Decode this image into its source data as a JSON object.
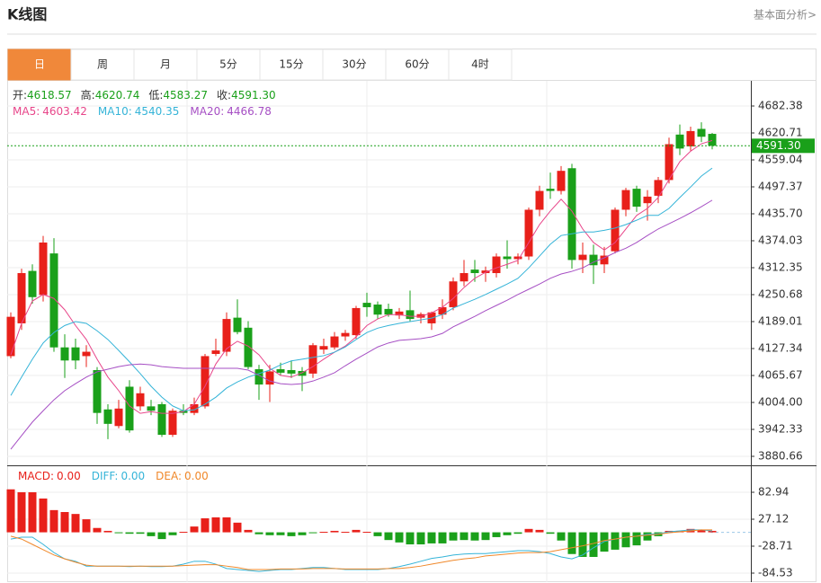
{
  "title": "K线图",
  "link": "基本面分析>",
  "tabs": [
    "日",
    "周",
    "月",
    "5分",
    "15分",
    "30分",
    "60分",
    "4时"
  ],
  "chart_data": [
    {
      "type": "candlestick",
      "up_color": "#e8201a",
      "down_color": "#1aa01a",
      "ylim": [
        3860.1,
        4739.94
      ],
      "yticks": [
        4682.38,
        4620.71,
        4559.04,
        4497.37,
        {
          "value": 4435.7,
          "label": "4435.70"
        },
        4374.03,
        4312.35,
        4250.68,
        4189.01,
        4127.34,
        4065.67,
        {
          "value": 4004,
          "label": "4004.00"
        },
        3942.33,
        3880.66
      ],
      "info": [
        {
          "label": "开:",
          "value_label": "4618.57"
        },
        {
          "label": "高:",
          "value_label": "4620.74"
        },
        {
          "label": "低:",
          "value_label": "4583.27"
        },
        {
          "label": "收:",
          "value_label": "4591.30"
        }
      ],
      "last_price_label": "4591.30",
      "candles": [
        [
          4110,
          4210,
          4105,
          4200
        ],
        [
          4185,
          4310,
          4170,
          4300
        ],
        [
          4305,
          4320,
          4230,
          4245
        ],
        [
          4250,
          4385,
          4235,
          4370
        ],
        [
          4345,
          4380,
          4120,
          4130
        ],
        [
          4130,
          4160,
          4060,
          4100
        ],
        [
          4130,
          4150,
          4080,
          4100
        ],
        [
          4110,
          4135,
          4085,
          4120
        ],
        [
          4078,
          4085,
          3955,
          3980
        ],
        [
          3988,
          4000,
          3920,
          3955
        ],
        [
          3950,
          4010,
          3945,
          3990
        ],
        [
          4040,
          4055,
          3935,
          3940
        ],
        [
          3995,
          4040,
          3985,
          4025
        ],
        [
          3995,
          4010,
          3975,
          3985
        ],
        [
          4000,
          4005,
          3925,
          3930
        ],
        [
          3930,
          3990,
          3925,
          3985
        ],
        [
          3985,
          4000,
          3975,
          3980
        ],
        [
          3980,
          4015,
          3975,
          4000
        ],
        [
          3995,
          4115,
          3990,
          4110
        ],
        [
          4115,
          4150,
          4110,
          4123
        ],
        [
          4120,
          4210,
          4110,
          4195
        ],
        [
          4198,
          4240,
          4160,
          4165
        ],
        [
          4175,
          4190,
          4080,
          4085
        ],
        [
          4080,
          4090,
          4010,
          4045
        ],
        [
          4045,
          4090,
          4005,
          4075
        ],
        [
          4080,
          4095,
          4065,
          4072
        ],
        [
          4078,
          4100,
          4060,
          4070
        ],
        [
          4076,
          4085,
          4030,
          4065
        ],
        [
          4070,
          4140,
          4060,
          4135
        ],
        [
          4125,
          4150,
          4115,
          4133
        ],
        [
          4130,
          4165,
          4125,
          4155
        ],
        [
          4155,
          4170,
          4145,
          4163
        ],
        [
          4158,
          4225,
          4150,
          4220
        ],
        [
          4232,
          4255,
          4200,
          4222
        ],
        [
          4228,
          4235,
          4195,
          4205
        ],
        [
          4218,
          4230,
          4200,
          4205
        ],
        [
          4203,
          4220,
          4195,
          4212
        ],
        [
          4215,
          4260,
          4190,
          4195
        ],
        [
          4198,
          4210,
          4185,
          4206
        ],
        [
          4185,
          4212,
          4170,
          4210
        ],
        [
          4205,
          4240,
          4195,
          4222
        ],
        [
          4222,
          4290,
          4215,
          4281
        ],
        [
          4281,
          4330,
          4270,
          4300
        ],
        [
          4308,
          4330,
          4280,
          4300
        ],
        [
          4300,
          4315,
          4280,
          4306
        ],
        [
          4300,
          4345,
          4290,
          4338
        ],
        [
          4338,
          4375,
          4310,
          4332
        ],
        [
          4332,
          4345,
          4320,
          4338
        ],
        [
          4338,
          4450,
          4330,
          4445
        ],
        [
          4445,
          4500,
          4430,
          4488
        ],
        [
          4493,
          4530,
          4470,
          4488
        ],
        [
          4488,
          4545,
          4480,
          4534
        ],
        [
          4540,
          4550,
          4310,
          4330
        ],
        [
          4330,
          4370,
          4300,
          4342
        ],
        [
          4342,
          4365,
          4275,
          4318
        ],
        [
          4320,
          4360,
          4300,
          4340
        ],
        [
          4350,
          4450,
          4345,
          4445
        ],
        [
          4445,
          4495,
          4430,
          4490
        ],
        [
          4493,
          4500,
          4440,
          4452
        ],
        [
          4460,
          4490,
          4420,
          4475
        ],
        [
          4477,
          4520,
          4460,
          4513
        ],
        [
          4513,
          4610,
          4505,
          4595
        ],
        [
          4617,
          4640,
          4570,
          4585
        ],
        [
          4590,
          4635,
          4580,
          4625
        ],
        [
          4630,
          4645,
          4600,
          4612
        ],
        [
          4618.57,
          4620.74,
          4583.27,
          4591.3
        ]
      ],
      "series": [
        {
          "name": "MA5:",
          "value_label": "4603.42",
          "color": "#e8468a",
          "values": [
            4113,
            4185,
            4236,
            4251,
            4242,
            4216,
            4180,
            4148,
            4103,
            4062,
            4031,
            3996,
            3979,
            3983,
            3979,
            3979,
            3983,
            4000,
            4041,
            4092,
            4127,
            4144,
            4133,
            4113,
            4082,
            4066,
            4062,
            4072,
            4086,
            4103,
            4119,
            4133,
            4154,
            4180,
            4195,
            4205,
            4205,
            4201,
            4201,
            4209,
            4222,
            4242,
            4267,
            4288,
            4302,
            4312,
            4320,
            4329,
            4370,
            4411,
            4442,
            4469,
            4442,
            4401,
            4370,
            4353,
            4370,
            4401,
            4432,
            4448,
            4473,
            4514,
            4555,
            4579,
            4596,
            4603.42
          ]
        },
        {
          "name": "MA10:",
          "value_label": "4540.35",
          "color": "#35b4d8",
          "values": [
            4020,
            4062,
            4103,
            4140,
            4164,
            4180,
            4189,
            4185,
            4168,
            4148,
            4123,
            4097,
            4070,
            4041,
            4016,
            3996,
            3985,
            3987,
            4000,
            4016,
            4037,
            4051,
            4062,
            4070,
            4078,
            4090,
            4099,
            4103,
            4107,
            4111,
            4119,
            4131,
            4148,
            4164,
            4174,
            4180,
            4185,
            4189,
            4193,
            4197,
            4205,
            4220,
            4230,
            4240,
            4251,
            4263,
            4275,
            4288,
            4312,
            4339,
            4366,
            4386,
            4390,
            4394,
            4394,
            4398,
            4403,
            4411,
            4421,
            4432,
            4432,
            4448,
            4473,
            4497,
            4522,
            4540.35
          ]
        },
        {
          "name": "MA20:",
          "value_label": "4466.78",
          "color": "#a64fc4",
          "values": [
            3897,
            3928,
            3959,
            3985,
            4010,
            4031,
            4047,
            4062,
            4074,
            4080,
            4086,
            4090,
            4092,
            4090,
            4086,
            4084,
            4082,
            4082,
            4082,
            4082,
            4082,
            4082,
            4078,
            4066,
            4053,
            4047,
            4045,
            4047,
            4053,
            4062,
            4072,
            4088,
            4103,
            4117,
            4131,
            4140,
            4146,
            4148,
            4150,
            4154,
            4162,
            4177,
            4189,
            4201,
            4214,
            4226,
            4238,
            4251,
            4263,
            4275,
            4288,
            4298,
            4304,
            4312,
            4325,
            4335,
            4347,
            4357,
            4370,
            4386,
            4401,
            4413,
            4425,
            4438,
            4452,
            4466.78
          ]
        }
      ]
    },
    {
      "type": "macd",
      "up_color": "#e8201a",
      "down_color": "#1aa01a",
      "ylim": [
        -103.14,
        135.05
      ],
      "yticks": [
        82.94,
        27.12,
        -28.71,
        -84.53
      ],
      "bars_name": "MACD:",
      "bars_value_label": "0.00",
      "bars_color": "#e8201a",
      "bars": [
        89,
        83,
        83,
        70,
        46,
        42,
        38,
        27,
        9,
        3,
        -1,
        -3,
        -3,
        -8,
        -14,
        -6,
        1,
        12,
        29,
        31,
        31,
        20,
        5,
        -4,
        -6,
        -6,
        -8,
        -6,
        -1,
        1,
        3,
        1,
        5,
        1,
        -8,
        -16,
        -21,
        -25,
        -25,
        -23,
        -23,
        -17,
        -16,
        -17,
        -16,
        -10,
        -6,
        -3,
        7,
        5,
        -3,
        -17,
        -45,
        -51,
        -51,
        -40,
        -36,
        -31,
        -27,
        -17,
        -8,
        3,
        3,
        7,
        5,
        3
      ],
      "series": [
        {
          "name": "DIFF:",
          "value_label": "0.00",
          "color": "#35b4d8",
          "values": [
            -14,
            -10,
            -10,
            -25,
            -42,
            -55,
            -60,
            -70,
            -70,
            -70,
            -70,
            -71,
            -70,
            -71,
            -71,
            -70,
            -66,
            -60,
            -60,
            -66,
            -75,
            -77,
            -79,
            -81,
            -79,
            -77,
            -77,
            -75,
            -73,
            -73,
            -75,
            -77,
            -77,
            -77,
            -77,
            -75,
            -71,
            -66,
            -60,
            -54,
            -51,
            -47,
            -45,
            -44,
            -44,
            -42,
            -40,
            -38,
            -38,
            -40,
            -44,
            -51,
            -55,
            -47,
            -32,
            -19,
            -14,
            -10,
            -8,
            -4,
            -3,
            1,
            3,
            5,
            5,
            3
          ]
        },
        {
          "name": "DEA:",
          "value_label": "0.00",
          "color": "#f0882a",
          "values": [
            -8,
            -14,
            -25,
            -36,
            -47,
            -55,
            -62,
            -68,
            -70,
            -70,
            -70,
            -70,
            -70,
            -70,
            -70,
            -70,
            -69,
            -68,
            -67,
            -67,
            -70,
            -73,
            -77,
            -77,
            -77,
            -76,
            -76,
            -76,
            -75,
            -75,
            -75,
            -76,
            -76,
            -76,
            -76,
            -75,
            -75,
            -73,
            -70,
            -66,
            -62,
            -58,
            -55,
            -53,
            -49,
            -47,
            -45,
            -43,
            -42,
            -42,
            -40,
            -36,
            -32,
            -28,
            -23,
            -17,
            -14,
            -10,
            -8,
            -6,
            -4,
            -1,
            1,
            3,
            5,
            5
          ]
        }
      ]
    }
  ]
}
